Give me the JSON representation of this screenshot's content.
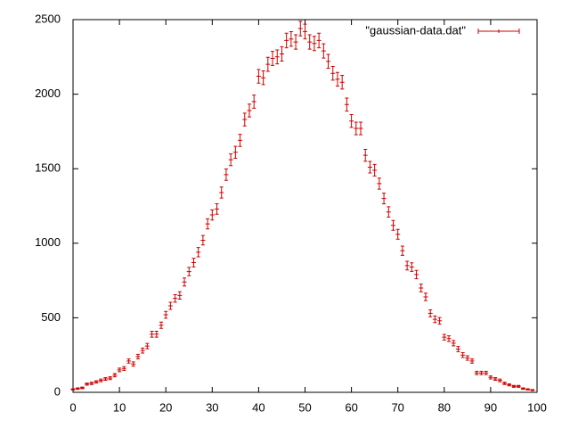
{
  "chart_data": {
    "type": "errorbar",
    "x": [
      0,
      1,
      2,
      3,
      4,
      5,
      6,
      7,
      8,
      9,
      10,
      11,
      12,
      13,
      14,
      15,
      16,
      17,
      18,
      19,
      20,
      21,
      22,
      23,
      24,
      25,
      26,
      27,
      28,
      29,
      30,
      31,
      32,
      33,
      34,
      35,
      36,
      37,
      38,
      39,
      40,
      41,
      42,
      43,
      44,
      45,
      46,
      47,
      48,
      49,
      50,
      51,
      52,
      53,
      54,
      55,
      56,
      57,
      58,
      59,
      60,
      61,
      62,
      63,
      64,
      65,
      66,
      67,
      68,
      69,
      70,
      71,
      72,
      73,
      74,
      75,
      76,
      77,
      78,
      79,
      80,
      81,
      82,
      83,
      84,
      85,
      86,
      87,
      88,
      89,
      90,
      91,
      92,
      93,
      94,
      95,
      96,
      97,
      98,
      99
    ],
    "series": [
      {
        "name": "\"gaussian-data.dat\"",
        "color": "#cc0000",
        "values": [
          20,
          25,
          30,
          55,
          60,
          70,
          80,
          90,
          95,
          115,
          150,
          160,
          210,
          190,
          240,
          280,
          310,
          390,
          390,
          450,
          520,
          580,
          630,
          650,
          740,
          810,
          870,
          940,
          1020,
          1130,
          1190,
          1230,
          1340,
          1460,
          1560,
          1610,
          1690,
          1830,
          1890,
          1950,
          2120,
          2110,
          2200,
          2240,
          2250,
          2270,
          2360,
          2370,
          2350,
          2440,
          2420,
          2350,
          2340,
          2360,
          2290,
          2220,
          2140,
          2100,
          2080,
          1930,
          1820,
          1770,
          1770,
          1590,
          1510,
          1490,
          1400,
          1300,
          1210,
          1120,
          1060,
          950,
          850,
          840,
          790,
          700,
          640,
          530,
          490,
          480,
          370,
          360,
          330,
          290,
          250,
          230,
          210,
          130,
          130,
          130,
          100,
          90,
          80,
          60,
          50,
          40,
          40,
          25,
          20,
          15
        ],
        "errors": [
          4,
          5,
          5,
          7,
          8,
          8,
          9,
          9,
          10,
          11,
          12,
          13,
          14,
          14,
          15,
          17,
          18,
          20,
          20,
          21,
          23,
          24,
          25,
          25,
          27,
          28,
          29,
          31,
          32,
          34,
          34,
          35,
          37,
          38,
          39,
          40,
          41,
          43,
          43,
          44,
          46,
          46,
          47,
          47,
          47,
          48,
          49,
          49,
          48,
          49,
          49,
          48,
          48,
          49,
          48,
          47,
          46,
          46,
          46,
          44,
          43,
          42,
          42,
          40,
          39,
          39,
          37,
          36,
          35,
          33,
          33,
          31,
          29,
          29,
          28,
          26,
          25,
          23,
          22,
          22,
          19,
          19,
          18,
          17,
          16,
          15,
          14,
          11,
          11,
          11,
          10,
          9,
          9,
          8,
          7,
          6,
          6,
          5,
          4,
          4
        ]
      }
    ],
    "xlim": [
      0,
      100
    ],
    "ylim": [
      0,
      2500
    ],
    "xticks": [
      0,
      10,
      20,
      30,
      40,
      50,
      60,
      70,
      80,
      90,
      100
    ],
    "yticks": [
      0,
      500,
      1000,
      1500,
      2000,
      2500
    ],
    "legend": "top right"
  }
}
